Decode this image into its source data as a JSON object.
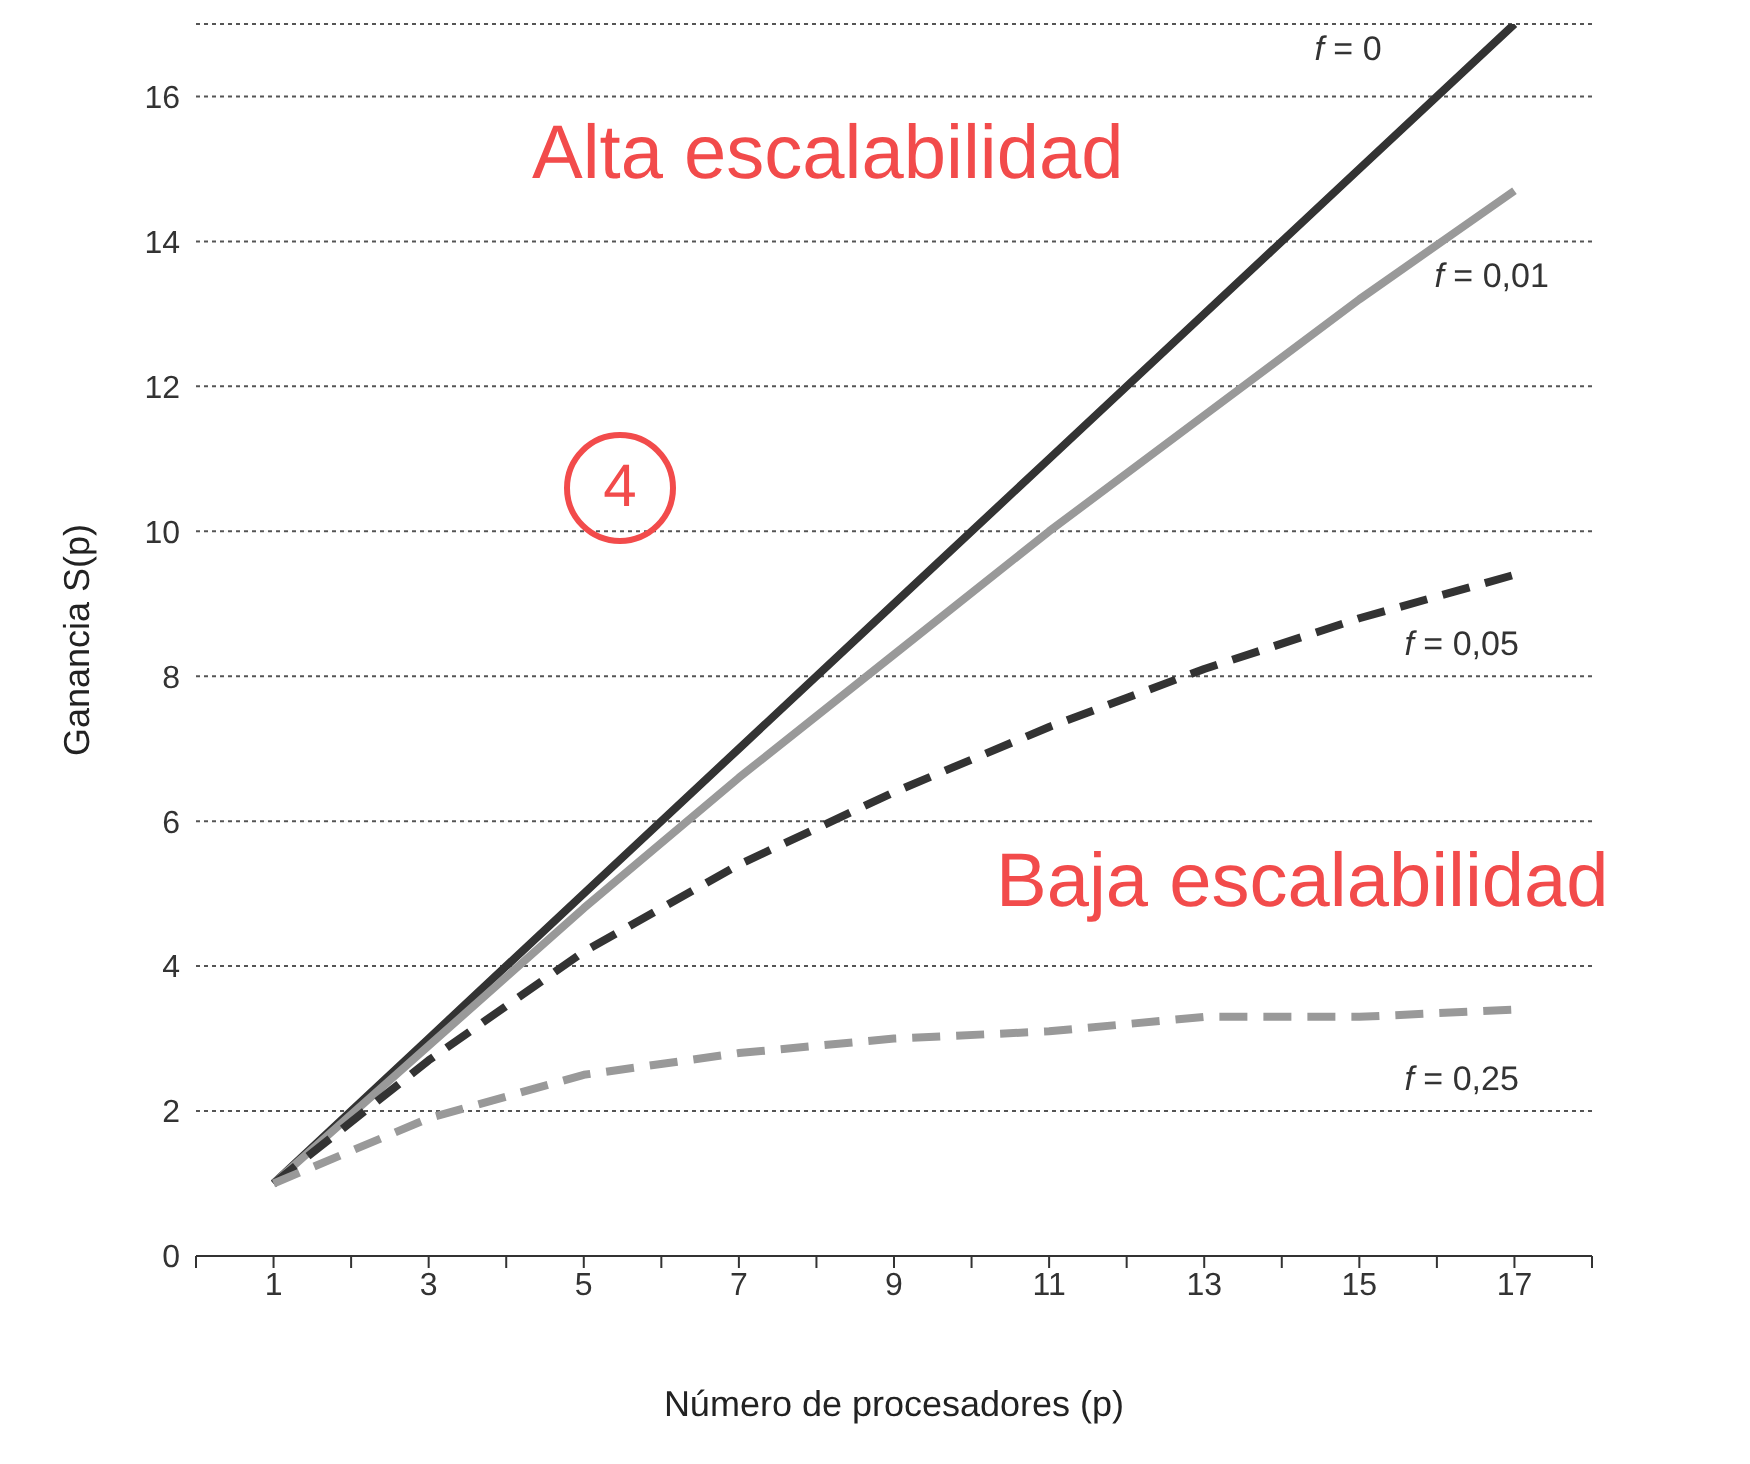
{
  "chart_data": {
    "type": "line",
    "xlabel": "Número de procesadores (p)",
    "ylabel": "Ganancia S(p)",
    "x": [
      1,
      3,
      5,
      7,
      9,
      11,
      13,
      15,
      17
    ],
    "series": [
      {
        "name": "f = 0",
        "color": "#333333",
        "line_style": "solid",
        "values": [
          1,
          3,
          5,
          7,
          9,
          11,
          13,
          15,
          17
        ]
      },
      {
        "name": "f = 0,01",
        "color": "#999999",
        "line_style": "solid",
        "values": [
          1,
          2.9,
          4.8,
          6.6,
          8.3,
          10,
          11.6,
          13.2,
          14.7
        ]
      },
      {
        "name": "f = 0,05",
        "color": "#333333",
        "line_style": "dashed",
        "values": [
          1,
          2.7,
          4.2,
          5.4,
          6.4,
          7.3,
          8.1,
          8.8,
          9.4
        ]
      },
      {
        "name": "f = 0,25",
        "color": "#999999",
        "line_style": "dashed",
        "values": [
          1,
          1.9,
          2.5,
          2.8,
          3,
          3.1,
          3.3,
          3.3,
          3.4
        ]
      }
    ],
    "xlim": [
      0,
      18
    ],
    "xticks": [
      {
        "value": 0,
        "label": null
      },
      1,
      {
        "value": 2,
        "label": null
      },
      3,
      {
        "value": 4,
        "label": null
      },
      5,
      {
        "value": 6,
        "label": null
      },
      7,
      {
        "value": 8,
        "label": null
      },
      9,
      {
        "value": 10,
        "label": null
      },
      11,
      {
        "value": 12,
        "label": null
      },
      13,
      {
        "value": 14,
        "label": null
      },
      15,
      {
        "value": 16,
        "label": null
      },
      17,
      {
        "value": 18,
        "label": null
      }
    ],
    "ylim": [
      0,
      17
    ],
    "yticks": [
      0,
      2,
      4,
      6,
      8,
      10,
      12,
      14,
      16,
      {
        "value": 17,
        "label": null
      }
    ],
    "grid": "y",
    "marker": "none",
    "legend": false,
    "annotations": [
      "Alta escalabilidad",
      "4",
      "Baja escalabilidad"
    ]
  }
}
